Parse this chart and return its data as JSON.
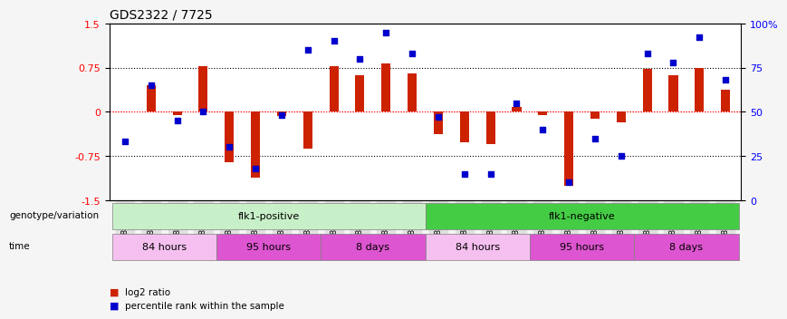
{
  "title": "GDS2322 / 7725",
  "samples": [
    "GSM86370",
    "GSM86371",
    "GSM86372",
    "GSM86373",
    "GSM86362",
    "GSM86363",
    "GSM86364",
    "GSM86365",
    "GSM86354",
    "GSM86355",
    "GSM86356",
    "GSM86357",
    "GSM86374",
    "GSM86375",
    "GSM86376",
    "GSM86377",
    "GSM86366",
    "GSM86367",
    "GSM86368",
    "GSM86369",
    "GSM86358",
    "GSM86359",
    "GSM86360",
    "GSM86361"
  ],
  "log2_ratio": [
    0.0,
    0.45,
    -0.05,
    0.78,
    -0.85,
    -1.12,
    -0.08,
    -0.62,
    0.78,
    0.62,
    0.82,
    0.65,
    -0.38,
    -0.52,
    -0.55,
    0.08,
    -0.05,
    -1.25,
    -0.12,
    -0.18,
    0.72,
    0.62,
    0.75,
    0.38
  ],
  "percentile_rank": [
    33,
    65,
    45,
    50,
    30,
    18,
    48,
    85,
    90,
    80,
    95,
    83,
    47,
    15,
    15,
    55,
    40,
    10,
    35,
    25,
    83,
    78,
    92,
    68
  ],
  "bar_color": "#cc2200",
  "dot_color": "#0000cc",
  "ylim": [
    -1.5,
    1.5
  ],
  "yticks_left": [
    -1.5,
    -0.75,
    0,
    0.75,
    1.5
  ],
  "yticks_right": [
    0,
    25,
    50,
    75,
    100
  ],
  "hlines": [
    0.75,
    0,
    -0.75
  ],
  "hline_colors": [
    "black",
    "red",
    "black"
  ],
  "hline_styles": [
    "dotted",
    "dotted",
    "dotted"
  ],
  "genotype_row": [
    {
      "label": "flk1-positive",
      "start": 0,
      "end": 11,
      "color": "#c8f0c8"
    },
    {
      "label": "flk1-negative",
      "start": 12,
      "end": 23,
      "color": "#44cc44"
    }
  ],
  "time_row": [
    {
      "label": "84 hours",
      "start": 0,
      "end": 3,
      "color": "#f0a0e8"
    },
    {
      "label": "95 hours",
      "start": 4,
      "end": 7,
      "color": "#e060d8"
    },
    {
      "label": "8 days",
      "start": 8,
      "end": 11,
      "color": "#e060d8"
    },
    {
      "label": "84 hours",
      "start": 12,
      "end": 15,
      "color": "#f0a0e8"
    },
    {
      "label": "95 hours",
      "start": 16,
      "end": 19,
      "color": "#e060d8"
    },
    {
      "label": "8 days",
      "start": 20,
      "end": 23,
      "color": "#e060d8"
    }
  ],
  "legend_items": [
    {
      "color": "#cc2200",
      "label": "log2 ratio"
    },
    {
      "color": "#0000cc",
      "label": "percentile rank within the sample"
    }
  ],
  "background_color": "#f5f5f5",
  "plot_bg": "#ffffff"
}
